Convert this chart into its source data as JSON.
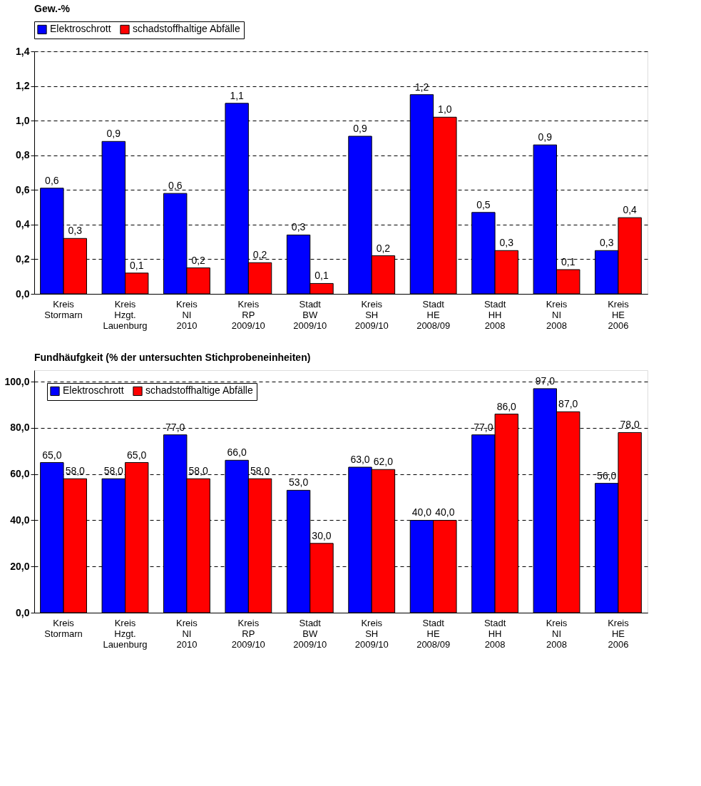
{
  "chart_data": [
    {
      "type": "bar",
      "title": "Gew.-%",
      "categories": [
        "Kreis\nStormarn",
        "Kreis\nHzgt.\nLauenburg",
        "Kreis\nNI\n2010",
        "Kreis\nRP\n2009/10",
        "Stadt\nBW\n2009/10",
        "Kreis\nSH\n2009/10",
        "Stadt\nHE\n2008/09",
        "Stadt\nHH\n2008",
        "Kreis\nNI\n2008",
        "Kreis\nHE\n2006"
      ],
      "series": [
        {
          "name": "Elektroschrott",
          "color": "#0000ff",
          "values": [
            0.61,
            0.88,
            0.58,
            1.1,
            0.34,
            0.91,
            1.15,
            0.47,
            0.86,
            0.25
          ],
          "value_labels": [
            "0,6",
            "0,9",
            "0,6",
            "1,1",
            "0,3",
            "0,9",
            "1,2",
            "0,5",
            "0,9",
            "0,3"
          ]
        },
        {
          "name": "schadstoffhaltige Abfälle",
          "color": "#ff0000",
          "values": [
            0.32,
            0.12,
            0.15,
            0.18,
            0.06,
            0.22,
            1.02,
            0.25,
            0.14,
            0.44
          ],
          "value_labels": [
            "0,3",
            "0,1",
            "0,2",
            "0,2",
            "0,1",
            "0,2",
            "1,0",
            "0,3",
            "0,1",
            "0,4"
          ]
        }
      ],
      "ylim": [
        0,
        1.4
      ],
      "yticks": [
        {
          "value": 0,
          "label": "0,0"
        },
        {
          "value": 0.2,
          "label": "0,2"
        },
        {
          "value": 0.4,
          "label": "0,4"
        },
        {
          "value": 0.6,
          "label": "0,6"
        },
        {
          "value": 0.8,
          "label": "0,8"
        },
        {
          "value": 1.0,
          "label": "1,0"
        },
        {
          "value": 1.2,
          "label": "1,2"
        },
        {
          "value": 1.4,
          "label": "1,4"
        }
      ],
      "grid": "y",
      "line_style": "dashed",
      "legend": "top"
    },
    {
      "type": "bar",
      "title": "Fundhäufgkeit (% der untersuchten Stichprobeneinheiten)",
      "categories": [
        "Kreis\nStormarn",
        "Kreis\nHzgt.\nLauenburg",
        "Kreis\nNI\n2010",
        "Kreis\nRP\n2009/10",
        "Stadt\nBW\n2009/10",
        "Kreis\nSH\n2009/10",
        "Stadt\nHE\n2008/09",
        "Stadt\nHH\n2008",
        "Kreis\nNI\n2008",
        "Kreis\nHE\n2006"
      ],
      "series": [
        {
          "name": "Elektroschrott",
          "color": "#0000ff",
          "values": [
            65,
            58,
            77,
            66,
            53,
            63,
            40,
            77,
            97,
            56
          ],
          "value_labels": [
            "65,0",
            "58,0",
            "77,0",
            "66,0",
            "53,0",
            "63,0",
            "40,0",
            "77,0",
            "97,0",
            "56,0"
          ]
        },
        {
          "name": "schadstoffhaltige Abfälle",
          "color": "#ff0000",
          "values": [
            58,
            65,
            58,
            58,
            30,
            62,
            40,
            86,
            87,
            78
          ],
          "value_labels": [
            "58,0",
            "65,0",
            "58,0",
            "58,0",
            "30,0",
            "62,0",
            "40,0",
            "86,0",
            "87,0",
            "78,0"
          ]
        }
      ],
      "ylim": [
        0,
        105
      ],
      "yticks": [
        {
          "value": 0,
          "label": "0,0"
        },
        {
          "value": 20,
          "label": "20,0"
        },
        {
          "value": 40,
          "label": "40,0"
        },
        {
          "value": 60,
          "label": "60,0"
        },
        {
          "value": 80,
          "label": "80,0"
        },
        {
          "value": 100,
          "label": "100,0"
        }
      ],
      "grid": "y",
      "line_style": "dashed",
      "legend": "top left"
    }
  ]
}
